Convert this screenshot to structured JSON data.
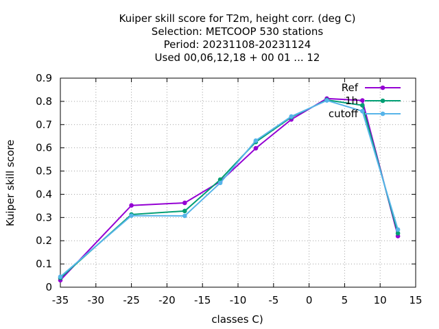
{
  "chart_data": {
    "type": "line",
    "title_lines": [
      "Kuiper skill score  for T2m, height corr. (deg C)",
      "Selection: METCOOP    530 stations",
      "Period: 20231108-20231124",
      "Used  00,06,12,18 + 00 01 ... 12"
    ],
    "xlabel": "classes C)",
    "ylabel": "Kuiper skill score",
    "xlim": [
      -35,
      15
    ],
    "ylim": [
      0,
      0.9
    ],
    "xticks": [
      -35,
      -30,
      -25,
      -20,
      -15,
      -10,
      -5,
      0,
      5,
      10,
      15
    ],
    "yticks": [
      0,
      0.1,
      0.2,
      0.3,
      0.4,
      0.5,
      0.6,
      0.7,
      0.8,
      0.9
    ],
    "grid": true,
    "legend_position": "top-right",
    "x": [
      -35,
      -25,
      -17.5,
      -12.5,
      -7.5,
      -2.5,
      2.5,
      7.5,
      12.5
    ],
    "series": [
      {
        "name": "Ref",
        "color": "#9400d3",
        "values": [
          0.03,
          0.352,
          0.363,
          0.455,
          0.598,
          0.722,
          0.812,
          0.804,
          0.22
        ]
      },
      {
        "name": "1h",
        "color": "#009e73",
        "values": [
          0.04,
          0.313,
          0.328,
          0.463,
          0.625,
          0.732,
          0.806,
          0.783,
          0.232
        ]
      },
      {
        "name": "cutoff",
        "color": "#56b4e9",
        "values": [
          0.045,
          0.308,
          0.307,
          0.449,
          0.631,
          0.735,
          0.804,
          0.758,
          0.248
        ]
      }
    ]
  }
}
